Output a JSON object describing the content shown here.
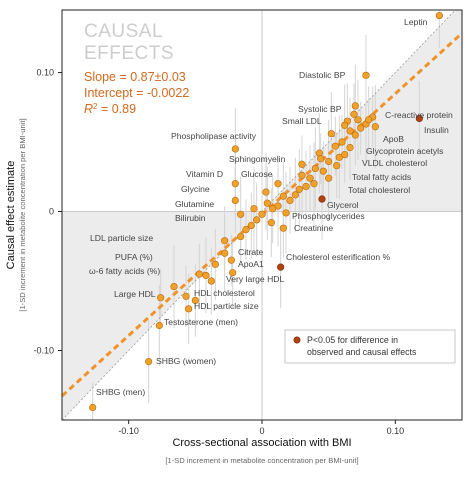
{
  "colors": {
    "point": "#f0a12a",
    "point_stroke": "#b86a0c",
    "significant_point": "#b5410f",
    "fit_line": "#f0922a",
    "stat_text": "#d2691e",
    "shade": "#ececec",
    "error_bar": "#d4d4d4"
  },
  "heading": {
    "line1": "CAUSAL",
    "line2": "EFFECTS"
  },
  "stats": {
    "slope": "Slope = 0.87±0.03",
    "intercept": "Intercept = -0.0022",
    "r2_symbol": "R",
    "r2_sup": "2",
    "r2_value": " = 0.89"
  },
  "legend": {
    "line1": "P<0.05 for difference in",
    "line2": "observed and causal effects"
  },
  "chart_data": {
    "type": "scatter",
    "xlabel": "Cross-sectional association with BMI",
    "xlabel_sub": "[1-SD increment in metabolite concentration per BMI-unit]",
    "ylabel": "Causal effect estimate",
    "ylabel_sub": "[1-SD increment in metabolite concentration per BMI-unit]",
    "xlim": [
      -0.15,
      0.15
    ],
    "ylim": [
      -0.15,
      0.145
    ],
    "xticks": [
      -0.1,
      0,
      0.1
    ],
    "xtick_labels": [
      "-0.10",
      "0",
      "0.10"
    ],
    "yticks": [
      -0.1,
      0,
      0.1
    ],
    "ytick_labels": [
      "-0.10",
      "0",
      "0.10"
    ],
    "identity_line": true,
    "fit": {
      "slope": 0.87,
      "intercept": -0.0022
    },
    "labeled_points": [
      {
        "label": "Leptin",
        "x": 0.133,
        "y": 0.141,
        "sig": false
      },
      {
        "label": "Diastolic BP",
        "x": 0.078,
        "y": 0.098,
        "sig": false
      },
      {
        "label": "Systolic BP",
        "x": 0.07,
        "y": 0.076,
        "sig": false
      },
      {
        "label": "Small LDL",
        "x": 0.064,
        "y": 0.065,
        "sig": false
      },
      {
        "label": "C-reactive protein",
        "x": 0.083,
        "y": 0.068,
        "sig": false
      },
      {
        "label": "Insulin",
        "x": 0.118,
        "y": 0.067,
        "sig": true
      },
      {
        "label": "ApoB",
        "x": 0.085,
        "y": 0.061,
        "sig": false
      },
      {
        "label": "Glycoprotein acetyls",
        "x": 0.07,
        "y": 0.055,
        "sig": false
      },
      {
        "label": "Phospholipase activity",
        "x": 0.052,
        "y": 0.056,
        "sig": false
      },
      {
        "label": "VLDL cholesterol",
        "x": 0.066,
        "y": 0.046,
        "sig": false
      },
      {
        "label": "Sphingomyelin",
        "x": 0.043,
        "y": 0.042,
        "sig": false
      },
      {
        "label": "Total fatty acids",
        "x": 0.058,
        "y": 0.039,
        "sig": false
      },
      {
        "label": "Vitamin D",
        "x": -0.02,
        "y": 0.045,
        "sig": false
      },
      {
        "label": "Glucose",
        "x": 0.03,
        "y": 0.026,
        "sig": false
      },
      {
        "label": "Total cholesterol",
        "x": 0.039,
        "y": 0.02,
        "sig": false
      },
      {
        "label": "Glycine",
        "x": -0.02,
        "y": 0.02,
        "sig": false
      },
      {
        "label": "Glycerol",
        "x": 0.045,
        "y": 0.009,
        "sig": true
      },
      {
        "label": "Glutamine",
        "x": -0.02,
        "y": 0.008,
        "sig": false
      },
      {
        "label": "Phosphoglycerides",
        "x": 0.018,
        "y": -0.001,
        "sig": false
      },
      {
        "label": "Bilirubin",
        "x": -0.016,
        "y": -0.002,
        "sig": false
      },
      {
        "label": "Creatinine",
        "x": 0.016,
        "y": -0.012,
        "sig": false
      },
      {
        "label": "LDL particle size",
        "x": -0.028,
        "y": -0.021,
        "sig": false
      },
      {
        "label": "Citrate",
        "x": -0.023,
        "y": -0.035,
        "sig": false
      },
      {
        "label": "ApoA1",
        "x": -0.022,
        "y": -0.044,
        "sig": false
      },
      {
        "label": "Cholesterol esterification %",
        "x": 0.014,
        "y": -0.04,
        "sig": true
      },
      {
        "label": "PUFA (%)",
        "x": -0.047,
        "y": -0.045,
        "sig": false
      },
      {
        "label": "Very large HDL",
        "x": -0.038,
        "y": -0.05,
        "sig": false
      },
      {
        "label": "ω-6 fatty acids (%)",
        "x": -0.066,
        "y": -0.054,
        "sig": false
      },
      {
        "label": "Large HDL",
        "x": -0.076,
        "y": -0.062,
        "sig": false
      },
      {
        "label": "HDL cholesterol",
        "x": -0.057,
        "y": -0.061,
        "sig": false
      },
      {
        "label": "HDL particle size",
        "x": -0.055,
        "y": -0.07,
        "sig": false
      },
      {
        "label": "Testosterone (men)",
        "x": -0.077,
        "y": -0.082,
        "sig": false
      },
      {
        "label": "SHBG (women)",
        "x": -0.085,
        "y": -0.108,
        "sig": false
      },
      {
        "label": "SHBG (men)",
        "x": -0.127,
        "y": -0.141,
        "sig": false
      }
    ],
    "other_points": [
      {
        "x": 0.062,
        "y": 0.062
      },
      {
        "x": 0.066,
        "y": 0.058
      },
      {
        "x": 0.074,
        "y": 0.06
      },
      {
        "x": 0.078,
        "y": 0.063
      },
      {
        "x": 0.072,
        "y": 0.066
      },
      {
        "x": 0.06,
        "y": 0.05
      },
      {
        "x": 0.055,
        "y": 0.047
      },
      {
        "x": 0.062,
        "y": 0.041
      },
      {
        "x": 0.05,
        "y": 0.036
      },
      {
        "x": 0.056,
        "y": 0.033
      },
      {
        "x": 0.046,
        "y": 0.029
      },
      {
        "x": 0.05,
        "y": 0.024
      },
      {
        "x": 0.036,
        "y": 0.024
      },
      {
        "x": 0.04,
        "y": 0.031
      },
      {
        "x": 0.033,
        "y": 0.018
      },
      {
        "x": 0.028,
        "y": 0.016
      },
      {
        "x": 0.025,
        "y": 0.012
      },
      {
        "x": 0.021,
        "y": 0.008
      },
      {
        "x": 0.016,
        "y": 0.011
      },
      {
        "x": 0.012,
        "y": 0.004
      },
      {
        "x": 0.008,
        "y": 0.002
      },
      {
        "x": 0.004,
        "y": 0.006
      },
      {
        "x": 0.0,
        "y": -0.002
      },
      {
        "x": -0.004,
        "y": -0.006
      },
      {
        "x": -0.008,
        "y": -0.01
      },
      {
        "x": -0.012,
        "y": -0.013
      },
      {
        "x": -0.016,
        "y": -0.018
      },
      {
        "x": 0.007,
        "y": -0.008
      },
      {
        "x": 0.003,
        "y": 0.014
      },
      {
        "x": -0.006,
        "y": 0.002
      },
      {
        "x": 0.012,
        "y": 0.02
      },
      {
        "x": -0.028,
        "y": -0.03
      },
      {
        "x": -0.035,
        "y": -0.038
      },
      {
        "x": -0.042,
        "y": -0.046
      },
      {
        "x": 0.069,
        "y": 0.07
      },
      {
        "x": 0.08,
        "y": 0.066
      },
      {
        "x": -0.05,
        "y": -0.064
      },
      {
        "x": 0.044,
        "y": 0.038
      },
      {
        "x": 0.03,
        "y": 0.034
      }
    ]
  }
}
